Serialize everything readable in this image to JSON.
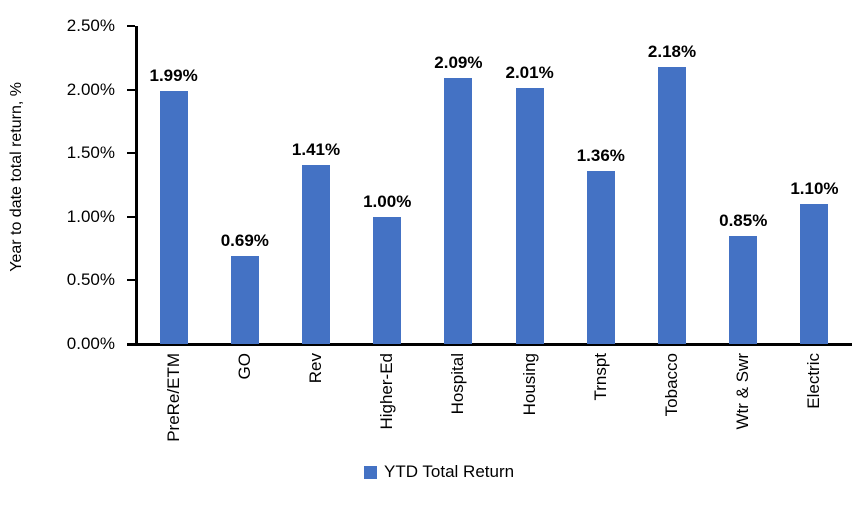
{
  "chart_data": {
    "type": "bar",
    "title": "",
    "xlabel": "",
    "ylabel": "Year to date total return, %",
    "categories": [
      "PreRe/ETM",
      "GO",
      "Rev",
      "Higher-Ed",
      "Hospital",
      "Housing",
      "Trnspt",
      "Tobacco",
      "Wtr & Swr",
      "Electric"
    ],
    "series": [
      {
        "name": "YTD Total Return",
        "values": [
          1.99,
          0.69,
          1.41,
          1.0,
          2.09,
          2.01,
          1.36,
          2.18,
          0.85,
          1.1
        ]
      }
    ],
    "value_labels": [
      "1.99%",
      "0.69%",
      "1.41%",
      "1.00%",
      "2.09%",
      "2.01%",
      "1.36%",
      "2.18%",
      "0.85%",
      "1.10%"
    ],
    "ylim": [
      0,
      2.5
    ],
    "yticks": {
      "values": [
        0,
        0.5,
        1.0,
        1.5,
        2.0,
        2.5
      ],
      "labels": [
        "0.00%",
        "0.50%",
        "1.00%",
        "1.50%",
        "2.00%",
        "2.50%"
      ]
    },
    "grid": false,
    "legend": {
      "label": "YTD Total Return",
      "position": "bottom",
      "marker_color": "#4472C4"
    },
    "bar_color": "#4472C4",
    "axis_color": "#000000"
  }
}
